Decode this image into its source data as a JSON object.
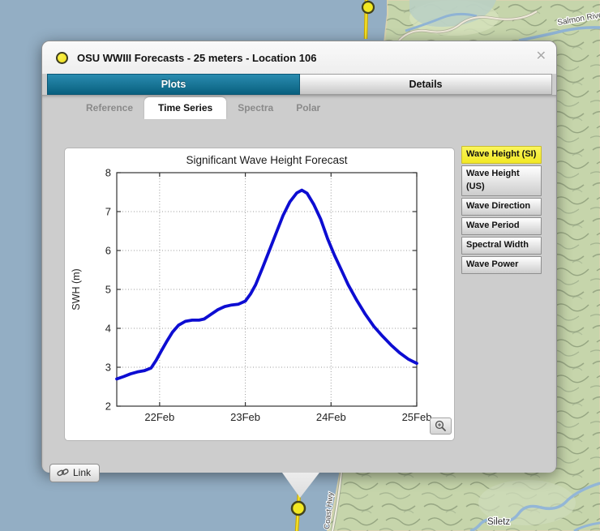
{
  "window": {
    "title": "OSU WWIII Forecasts - 25 meters - Location 106",
    "close_label": "✕"
  },
  "tabs": [
    {
      "label": "Plots",
      "active": true
    },
    {
      "label": "Details",
      "active": false
    }
  ],
  "subtabs": [
    {
      "label": "Reference",
      "active": false
    },
    {
      "label": "Time Series",
      "active": true
    },
    {
      "label": "Spectra",
      "active": false
    },
    {
      "label": "Polar",
      "active": false
    }
  ],
  "plot_buttons": [
    {
      "label": "Wave Height (SI)",
      "selected": true
    },
    {
      "label": "Wave Height (US)",
      "selected": false
    },
    {
      "label": "Wave Direction",
      "selected": false
    },
    {
      "label": "Wave Period",
      "selected": false
    },
    {
      "label": "Spectral Width",
      "selected": false
    },
    {
      "label": "Wave Power",
      "selected": false
    }
  ],
  "link_button": {
    "label": "Link"
  },
  "icons": {
    "zoom_button": "magnifier-plus-icon",
    "link_button": "chain-link-icon",
    "title_marker": "yellow-station-dot"
  },
  "map": {
    "labels": {
      "salmon_river": "Salmon River",
      "siletz": "Siletz",
      "coast_hwy": "Coast Hwy"
    },
    "ocean_color": "#93aec4",
    "land_color": "#c6d5ab",
    "marker_color": "#f2e822"
  },
  "colors": {
    "accent_teal": "#0f7190",
    "selected_yellow": "#f7ef35",
    "curve_blue": "#0d0dd2"
  },
  "chart_data": {
    "type": "line",
    "title": "Significant Wave Height Forecast",
    "xlabel": "",
    "ylabel": "SWH (m)",
    "xlim": [
      21.5,
      25
    ],
    "ylim": [
      2,
      8
    ],
    "xticks": [
      22,
      23,
      24,
      25
    ],
    "xtick_labels": [
      "22Feb",
      "23Feb",
      "24Feb",
      "25Feb"
    ],
    "yticks": [
      2,
      3,
      4,
      5,
      6,
      7,
      8
    ],
    "grid": true,
    "legend": "none",
    "series": [
      {
        "name": "Significant Wave Height",
        "color": "#0d0dd2",
        "points": [
          [
            21.5,
            2.7
          ],
          [
            21.58,
            2.76
          ],
          [
            21.66,
            2.83
          ],
          [
            21.74,
            2.88
          ],
          [
            21.82,
            2.91
          ],
          [
            21.9,
            2.98
          ],
          [
            21.96,
            3.18
          ],
          [
            22.02,
            3.42
          ],
          [
            22.08,
            3.65
          ],
          [
            22.15,
            3.9
          ],
          [
            22.22,
            4.08
          ],
          [
            22.3,
            4.18
          ],
          [
            22.38,
            4.21
          ],
          [
            22.46,
            4.21
          ],
          [
            22.52,
            4.24
          ],
          [
            22.6,
            4.36
          ],
          [
            22.68,
            4.48
          ],
          [
            22.76,
            4.56
          ],
          [
            22.84,
            4.6
          ],
          [
            22.92,
            4.62
          ],
          [
            23.0,
            4.7
          ],
          [
            23.06,
            4.88
          ],
          [
            23.12,
            5.12
          ],
          [
            23.2,
            5.55
          ],
          [
            23.28,
            6.0
          ],
          [
            23.36,
            6.45
          ],
          [
            23.44,
            6.9
          ],
          [
            23.52,
            7.25
          ],
          [
            23.6,
            7.48
          ],
          [
            23.66,
            7.55
          ],
          [
            23.72,
            7.47
          ],
          [
            23.8,
            7.18
          ],
          [
            23.88,
            6.8
          ],
          [
            23.96,
            6.3
          ],
          [
            24.04,
            5.88
          ],
          [
            24.12,
            5.5
          ],
          [
            24.2,
            5.12
          ],
          [
            24.3,
            4.72
          ],
          [
            24.4,
            4.36
          ],
          [
            24.5,
            4.05
          ],
          [
            24.6,
            3.8
          ],
          [
            24.7,
            3.57
          ],
          [
            24.8,
            3.37
          ],
          [
            24.9,
            3.21
          ],
          [
            25.0,
            3.1
          ]
        ]
      }
    ]
  }
}
